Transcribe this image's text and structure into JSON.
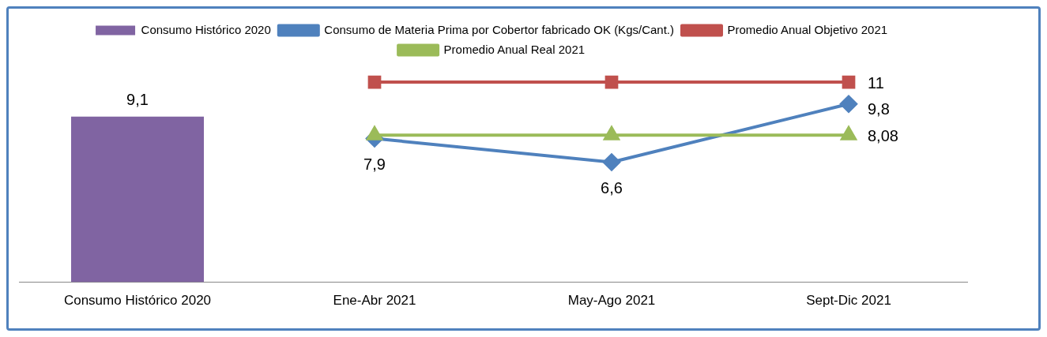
{
  "chart_data": {
    "type": "bar",
    "categories": [
      "Consumo Histórico 2020",
      "Ene-Abr 2021",
      "May-Ago 2021",
      "Sept-Dic 2021"
    ],
    "series": [
      {
        "name": "Consumo Histórico 2020",
        "color": "#8064a2",
        "values": [
          9.1,
          null,
          null,
          null
        ],
        "value_labels": [
          "9,1",
          null,
          null,
          null
        ]
      },
      {
        "name": "Consumo de Materia Prima por Cobertor fabricado OK (Kgs/Cant.)",
        "type": "line",
        "marker": "diamond",
        "color": "#4f81bd",
        "values": [
          null,
          7.9,
          6.6,
          9.8
        ],
        "value_labels": [
          null,
          "7,9",
          "6,6",
          "9,8"
        ]
      },
      {
        "name": "Promedio Anual Objetivo 2021",
        "type": "line",
        "marker": "square",
        "color": "#c0504d",
        "values": [
          null,
          11,
          11,
          11
        ],
        "value_labels": [
          null,
          null,
          null,
          "11"
        ]
      },
      {
        "name": "Promedio Anual Real 2021",
        "type": "line",
        "marker": "triangle",
        "color": "#9bbb59",
        "values": [
          null,
          8.08,
          8.08,
          8.08
        ],
        "value_labels": [
          null,
          null,
          null,
          "8,08"
        ]
      }
    ],
    "grid": false,
    "legend": "top"
  }
}
